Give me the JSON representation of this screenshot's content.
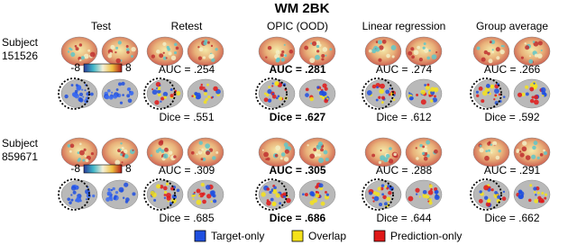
{
  "title": "WM 2BK",
  "columns": [
    "Test",
    "Retest",
    "OPIC (OOD)",
    "Linear regression",
    "Group average"
  ],
  "subjects": [
    {
      "label": "Subject",
      "id": "151526",
      "colorbar": {
        "min": "-8",
        "max": "8"
      },
      "auc": [
        "AUC = .254",
        "AUC = .281",
        "AUC = .274",
        "AUC = .266"
      ],
      "dice": [
        "Dice = .551",
        "Dice = .627",
        "Dice = .612",
        "Dice = .592"
      ]
    },
    {
      "label": "Subject",
      "id": "859671",
      "colorbar": {
        "min": "-8",
        "max": "8"
      },
      "auc": [
        "AUC = .309",
        "AUC = .305",
        "AUC = .288",
        "AUC = .291"
      ],
      "dice": [
        "Dice = .685",
        "Dice = .686",
        "Dice = .644",
        "Dice = .662"
      ]
    }
  ],
  "legend": [
    "Target-only",
    "Overlap",
    "Prediction-only"
  ]
}
